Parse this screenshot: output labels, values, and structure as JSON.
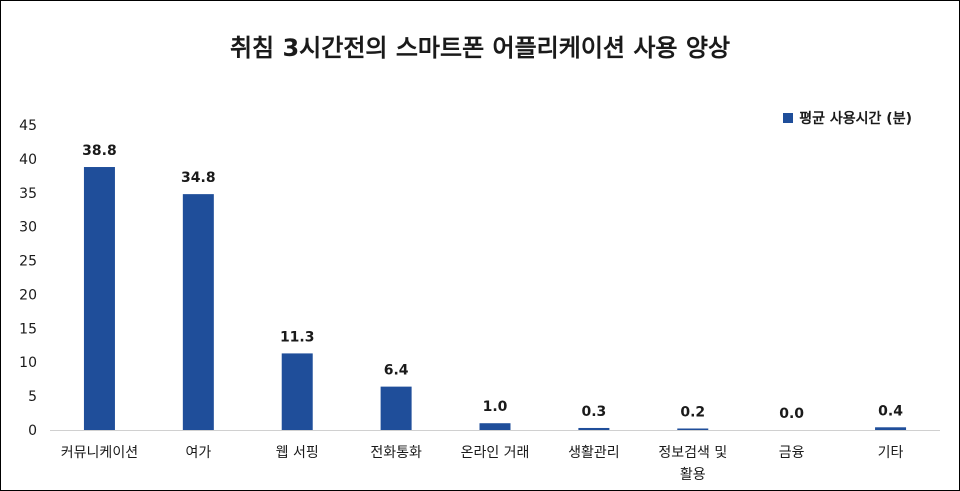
{
  "chart_data": {
    "type": "bar",
    "title": "취침 3시간전의 스마트폰 어플리케이션 사용 양상",
    "categories": [
      "커뮤니케이션",
      "여가",
      "웹 서핑",
      "전화통화",
      "온라인 거래",
      "생활관리",
      "정보검색 및 활용",
      "금융",
      "기타"
    ],
    "series": [
      {
        "name": "평균 사용시간 (분)",
        "values": [
          38.8,
          34.8,
          11.3,
          6.4,
          1.0,
          0.3,
          0.2,
          0.0,
          0.4
        ]
      }
    ],
    "value_labels": [
      "38.8",
      "34.8",
      "11.3",
      "6.4",
      "1.0",
      "0.3",
      "0.2",
      "0.0",
      "0.4"
    ],
    "yticks": [
      "0",
      "5",
      "10",
      "15",
      "20",
      "25",
      "30",
      "35",
      "40",
      "45"
    ],
    "ylim": [
      0,
      45
    ],
    "grid": false,
    "legend_position": "top-right",
    "bar_color": "#1f4e9a"
  }
}
